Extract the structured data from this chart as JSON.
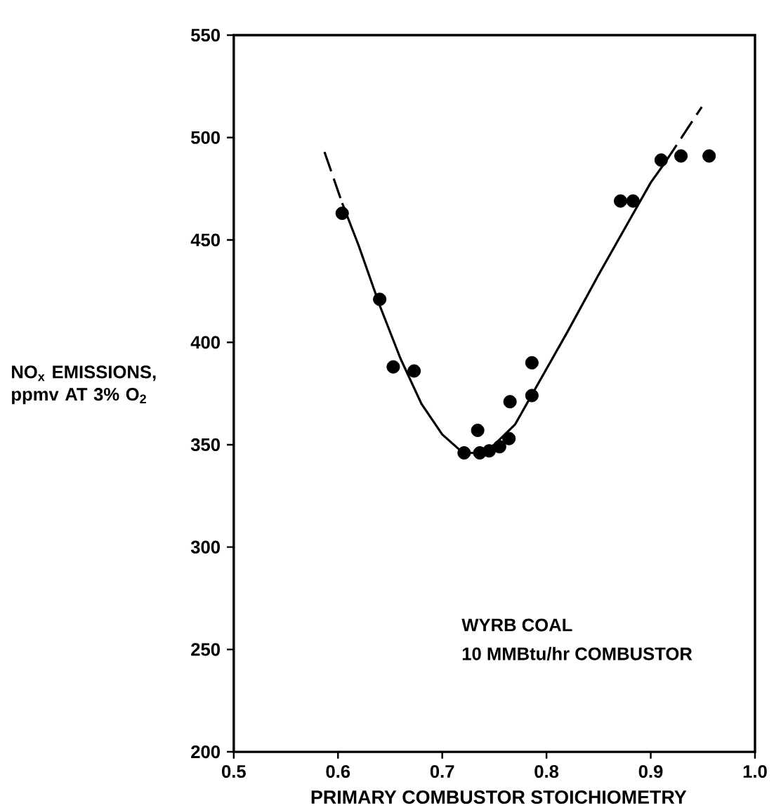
{
  "chart_data": {
    "type": "scatter",
    "xlabel": "PRIMARY COMBUSTOR STOICHIOMETRY",
    "ylabel": "NO$_{x}$ EMISSIONS, ppmv AT 3% O$_{2}$",
    "xlim": [
      0.5,
      1.0
    ],
    "ylim": [
      200,
      550
    ],
    "xticks": [
      0.5,
      0.6,
      0.7,
      0.8,
      0.9,
      {
        "value": 1.0,
        "label": "1.0"
      }
    ],
    "yticks": [
      200,
      250,
      300,
      350,
      400,
      450,
      500,
      550
    ],
    "marker": "circle",
    "annotations": [
      "WYRB COAL",
      "10 MMBtu/hr COMBUSTOR"
    ],
    "series": [
      {
        "color": "#000000",
        "x": [
          0.604,
          0.64,
          0.653,
          0.673,
          0.721,
          0.734,
          0.736,
          0.745,
          0.755,
          0.764,
          0.765,
          0.786,
          0.786,
          0.871,
          0.883,
          0.91,
          0.929,
          0.956
        ],
        "values": [
          463,
          421,
          388,
          386,
          346,
          357,
          346,
          347,
          349,
          353,
          371,
          374,
          390,
          469,
          469,
          489,
          491,
          491
        ]
      },
      {
        "type": "line",
        "marker": "none",
        "color": "#000000",
        "x": [
          0.604,
          0.62,
          0.64,
          0.66,
          0.68,
          0.7,
          0.72,
          0.735,
          0.75,
          0.77,
          0.79,
          0.82,
          0.85,
          0.88,
          0.9,
          0.914
        ],
        "values": [
          468,
          447,
          418,
          392,
          370,
          355,
          346,
          346,
          350,
          360,
          378,
          405,
          433,
          460,
          478,
          488
        ]
      },
      {
        "type": "line",
        "marker": "none",
        "line_style": "dashed",
        "color": "#000000",
        "x": [
          0.587,
          0.604
        ],
        "values": [
          493,
          468
        ]
      },
      {
        "type": "line",
        "marker": "none",
        "line_style": "dashed",
        "color": "#000000",
        "x": [
          0.914,
          0.949
        ],
        "values": [
          488,
          515
        ]
      }
    ]
  }
}
